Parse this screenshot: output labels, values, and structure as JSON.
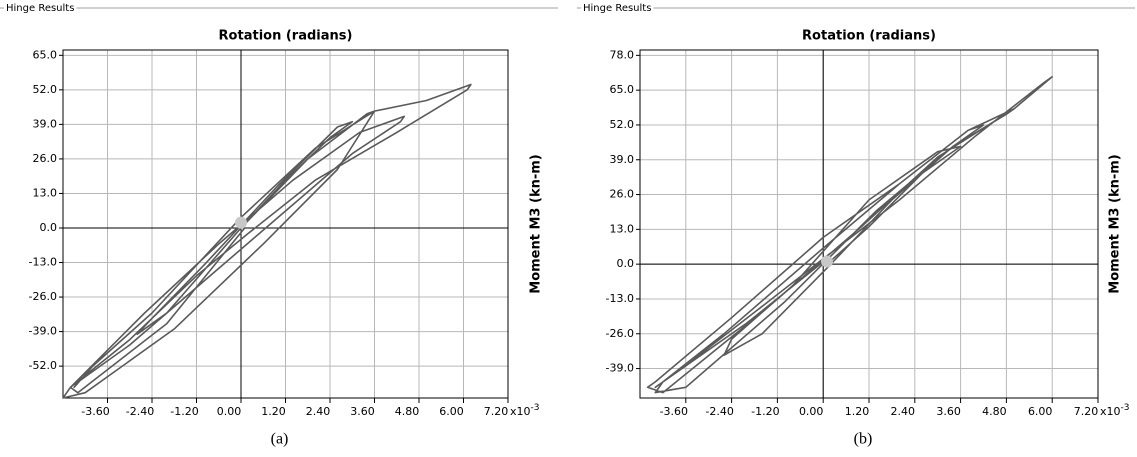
{
  "chart_data": [
    {
      "type": "line",
      "group_label": "Hinge Results",
      "title": "Rotation  (radians)",
      "y_label": "Moment M3  (kn-m)",
      "x_unit": {
        "base": "x10",
        "exponent": "-3"
      },
      "caption": "(a)",
      "grid": true,
      "xlim": [
        -4.8,
        7.2
      ],
      "ylim": [
        -64,
        67
      ],
      "xticks": [
        {
          "value": -3.6,
          "label": "-3.60"
        },
        {
          "value": -2.4,
          "label": "-2.40"
        },
        {
          "value": -1.2,
          "label": "-1.20"
        },
        {
          "value": 0,
          "label": "0.00"
        },
        {
          "value": 1.2,
          "label": "1.20"
        },
        {
          "value": 2.4,
          "label": "2.40"
        },
        {
          "value": 3.6,
          "label": "3.60"
        },
        {
          "value": 4.8,
          "label": "4.80"
        },
        {
          "value": 6,
          "label": "6.00"
        },
        {
          "value": 7.2,
          "label": "7.20"
        }
      ],
      "yticks": [
        {
          "value": 65,
          "label": "65.0"
        },
        {
          "value": 52,
          "label": "52.0"
        },
        {
          "value": 39,
          "label": "39.0"
        },
        {
          "value": 26,
          "label": "26.0"
        },
        {
          "value": 13,
          "label": "13.0"
        },
        {
          "value": 0,
          "label": "0.0"
        },
        {
          "value": -13,
          "label": "-13.0"
        },
        {
          "value": -26,
          "label": "-26.0"
        },
        {
          "value": -39,
          "label": "-39.0"
        },
        {
          "value": -52,
          "label": "-52.0"
        }
      ],
      "series": [
        {
          "color": "#5a5a5a",
          "x": [
            0,
            1.2,
            2.4,
            3.0,
            2.6,
            1.0,
            -1.0,
            -2.4,
            -2.8,
            -2.0,
            0,
            1.8,
            3.4,
            3.6,
            2.0,
            0,
            -2.4,
            -4.0,
            -4.5,
            -4.4,
            -3.0,
            -1.0,
            1.0,
            3.0,
            4.3,
            4.4,
            3.2,
            1.4,
            -0.6,
            -2.6,
            -4.6,
            -4.8,
            -4.2,
            -1.8,
            0.6,
            2.6,
            3.6,
            5.0,
            6.2,
            6.1,
            4.2,
            2.0,
            0.2,
            -1.2,
            -3.0,
            -4.6,
            -4.4,
            -2.0,
            0.1
          ],
          "values": [
            0,
            18,
            34,
            40,
            38,
            16,
            -14,
            -34,
            -40,
            -32,
            0,
            26,
            43,
            44,
            30,
            4,
            -32,
            -52,
            -60,
            -58,
            -44,
            -20,
            4,
            28,
            40,
            42,
            36,
            18,
            -6,
            -32,
            -60,
            -64,
            -62,
            -38,
            -6,
            22,
            44,
            48,
            54,
            52,
            36,
            18,
            -2,
            -18,
            -42,
            -60,
            -62,
            -36,
            0
          ]
        }
      ],
      "marker": {
        "x": 0,
        "y": 2,
        "color": "#c8c8c8"
      }
    },
    {
      "type": "line",
      "group_label": "Hinge Results",
      "title": "Rotation  (radians)",
      "y_label": "Moment M3  (kn-m)",
      "x_unit": {
        "base": "x10",
        "exponent": "-3"
      },
      "caption": "(b)",
      "grid": true,
      "xlim": [
        -4.8,
        7.2
      ],
      "ylim": [
        -50,
        80
      ],
      "xticks": [
        {
          "value": -3.6,
          "label": "-3.60"
        },
        {
          "value": -2.4,
          "label": "-2.40"
        },
        {
          "value": -1.2,
          "label": "-1.20"
        },
        {
          "value": 0,
          "label": "0.00"
        },
        {
          "value": 1.2,
          "label": "1.20"
        },
        {
          "value": 2.4,
          "label": "2.40"
        },
        {
          "value": 3.6,
          "label": "3.60"
        },
        {
          "value": 4.8,
          "label": "4.80"
        },
        {
          "value": 6,
          "label": "6.00"
        },
        {
          "value": 7.2,
          "label": "7.20"
        }
      ],
      "yticks": [
        {
          "value": 78,
          "label": "78.0"
        },
        {
          "value": 65,
          "label": "65.0"
        },
        {
          "value": 52,
          "label": "52.0"
        },
        {
          "value": 39,
          "label": "39.0"
        },
        {
          "value": 26,
          "label": "26.0"
        },
        {
          "value": 13,
          "label": "13.0"
        },
        {
          "value": 0,
          "label": "0.0"
        },
        {
          "value": -13,
          "label": "-13.0"
        },
        {
          "value": -26,
          "label": "-26.0"
        },
        {
          "value": -39,
          "label": "-39.0"
        }
      ],
      "series": [
        {
          "color": "#5a5a5a",
          "x": [
            0.1,
            1.2,
            2.6,
            3.6,
            3.0,
            1.2,
            -0.8,
            -2.4,
            -2.6,
            -1.6,
            0.2,
            1.8,
            3.4,
            4.2,
            3.8,
            2.0,
            0,
            -2.6,
            -4.2,
            -4.4,
            -3.6,
            -1.0,
            1.4,
            3.4,
            4.8,
            5.0,
            3.8,
            2.0,
            0,
            -2.4,
            -4.4,
            -4.6,
            -4.2,
            -1.6,
            1.0,
            3.0,
            5.0,
            6.0,
            5.8,
            4.0,
            2.0,
            0,
            -1.8,
            -3.8,
            -4.4,
            -2.0,
            0.1
          ],
          "values": [
            0,
            14,
            34,
            44,
            42,
            24,
            -8,
            -28,
            -34,
            -26,
            0,
            24,
            44,
            52,
            50,
            30,
            6,
            -26,
            -44,
            -48,
            -46,
            -14,
            20,
            44,
            56,
            58,
            50,
            30,
            10,
            -20,
            -44,
            -46,
            -48,
            -18,
            14,
            40,
            58,
            70,
            68,
            48,
            24,
            2,
            -18,
            -40,
            -46,
            -22,
            2
          ]
        }
      ],
      "marker": {
        "x": 0.1,
        "y": 1,
        "color": "#c8c8c8"
      }
    }
  ]
}
